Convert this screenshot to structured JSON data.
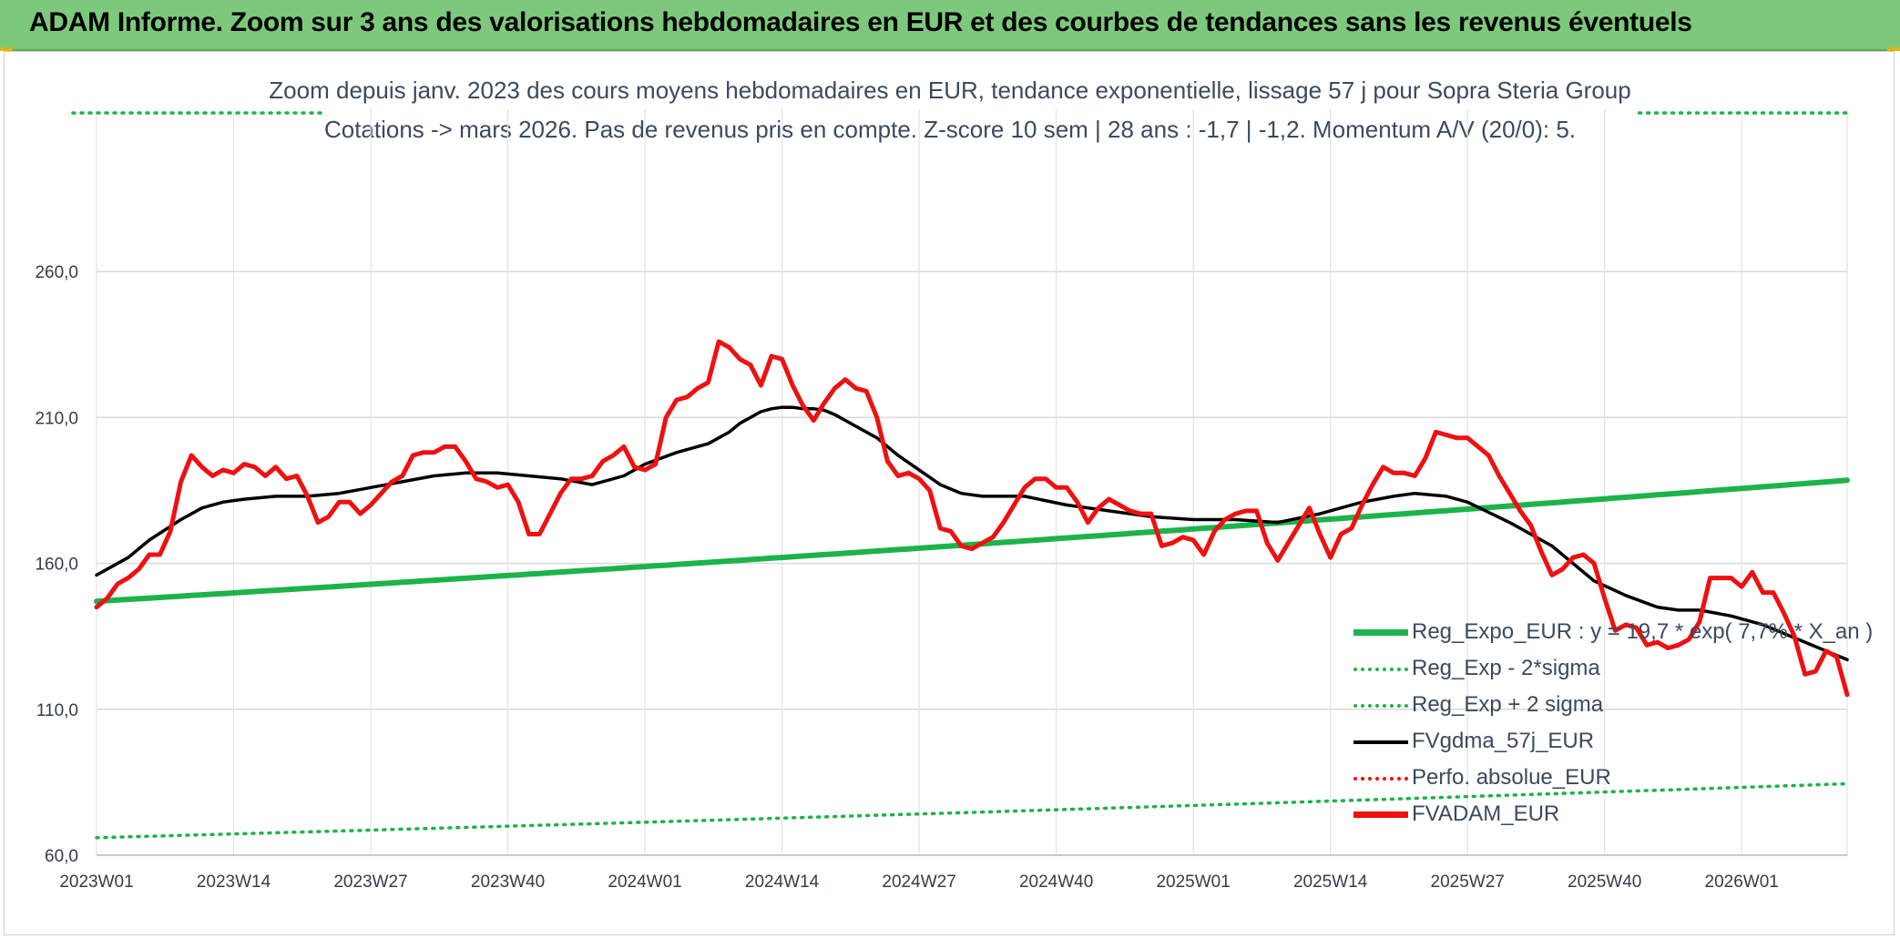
{
  "banner": {
    "title": "ADAM Informe. Zoom sur 3 ans des valorisations hebdomadaires en EUR et des courbes de tendances sans les revenus éventuels"
  },
  "chart_data": {
    "type": "line",
    "title": "Zoom depuis janv. 2023 des cours moyens hebdomadaires en EUR, tendance exponentielle, lissage 57 j pour Sopra Steria Group",
    "subtitle": "Cotations -> mars 2026. Pas de revenus pris en compte. Z-score 10 sem | 28 ans : -1,7 | -1,2. Momentum A/V (20/0): 5.",
    "x_tick_labels": [
      "2023W01",
      "2023W14",
      "2023W27",
      "2023W40",
      "2024W01",
      "2024W14",
      "2024W27",
      "2024W40",
      "2025W01",
      "2025W14",
      "2025W27",
      "2025W40",
      "2026W01"
    ],
    "y_tick_labels": [
      "60,0",
      "110,0",
      "160,0",
      "210,0",
      "260,0"
    ],
    "y_ticks": [
      60,
      110,
      160,
      210,
      260
    ],
    "ylim": [
      60,
      300
    ],
    "x_range_weeks": [
      0,
      166
    ],
    "grid": true,
    "legend_position": "bottom-right",
    "colors": {
      "reg_expo": "#1db34a",
      "sigma": "#1db34a",
      "fvgdma": "#000000",
      "perfo": "#ff0000",
      "fvadam": "#ee1111"
    },
    "series": [
      {
        "name": "Reg_Expo_EUR : y = 19,7 * exp( 7,7% * X_an )",
        "style": "solid-thick",
        "color": "#1db34a",
        "x": [
          0,
          166
        ],
        "values": [
          147,
          188.5
        ],
        "exponential": true
      },
      {
        "name": "Reg_Exp - 2*sigma",
        "style": "dotted",
        "color": "#1db34a",
        "x": [
          0,
          166
        ],
        "values": [
          66,
          84.5
        ],
        "exponential": true
      },
      {
        "name": "Reg_Exp + 2 sigma",
        "style": "dotted",
        "color": "#1db34a",
        "x": [
          0,
          18,
          148,
          166
        ],
        "values": [
          327,
          327,
          327,
          327
        ],
        "exponential": false
      },
      {
        "name": "FVgdma_57j_EUR",
        "style": "solid",
        "color": "#000000",
        "x": [
          0,
          3,
          5,
          8,
          10,
          12,
          14,
          17,
          20,
          23,
          26,
          29,
          32,
          35,
          38,
          41,
          44,
          47,
          50,
          52,
          55,
          58,
          60,
          61,
          62,
          63,
          64,
          65,
          66,
          67,
          68,
          69,
          70,
          71,
          72,
          74,
          76,
          78,
          80,
          82,
          84,
          88,
          92,
          96,
          100,
          104,
          108,
          112,
          116,
          118,
          120,
          123,
          125,
          128,
          130,
          134,
          138,
          140,
          142,
          145,
          148,
          150,
          152,
          155,
          158,
          160,
          162,
          164,
          166
        ],
        "values": [
          156,
          162,
          168,
          175,
          179,
          181,
          182,
          183,
          183,
          184,
          186,
          188,
          190,
          191,
          191,
          190,
          189,
          187,
          190,
          194,
          198,
          201,
          205,
          208,
          210,
          212,
          213,
          213.5,
          213.5,
          213,
          213,
          212.5,
          211,
          209,
          207,
          203,
          197,
          192,
          187,
          184,
          183,
          183,
          180,
          178,
          176,
          175,
          175,
          174,
          177,
          179,
          181,
          183,
          184,
          183,
          181,
          174,
          166,
          160,
          154,
          149,
          145,
          144,
          144,
          142,
          139,
          136,
          133,
          130,
          127
        ]
      },
      {
        "name": "Perfo. absolue_EUR",
        "style": "dotted",
        "color": "#ff0000",
        "x": [],
        "values": []
      },
      {
        "name": "FVADAM_EUR",
        "style": "solid-thick",
        "color": "#ee1111",
        "x": [
          0,
          1,
          2,
          3,
          4,
          5,
          6,
          7,
          8,
          9,
          10,
          11,
          12,
          13,
          14,
          15,
          16,
          17,
          18,
          19,
          20,
          21,
          22,
          23,
          24,
          25,
          26,
          27,
          28,
          29,
          30,
          31,
          32,
          33,
          34,
          35,
          36,
          37,
          38,
          39,
          40,
          41,
          42,
          43,
          44,
          45,
          46,
          47,
          48,
          49,
          50,
          51,
          52,
          53,
          54,
          55,
          56,
          57,
          58,
          59,
          60,
          61,
          62,
          63,
          64,
          65,
          66,
          67,
          68,
          69,
          70,
          71,
          72,
          73,
          74,
          75,
          76,
          77,
          78,
          79,
          80,
          81,
          82,
          83,
          84,
          85,
          86,
          87,
          88,
          89,
          90,
          91,
          92,
          93,
          94,
          95,
          96,
          97,
          98,
          99,
          100,
          101,
          102,
          103,
          104,
          105,
          106,
          107,
          108,
          109,
          110,
          111,
          112,
          113,
          114,
          115,
          116,
          117,
          118,
          119,
          120,
          121,
          122,
          123,
          124,
          125,
          126,
          127,
          128,
          129,
          130,
          131,
          132,
          133,
          134,
          135,
          136,
          137,
          138,
          139,
          140,
          141,
          142,
          143,
          144,
          145,
          146,
          147,
          148,
          149,
          150,
          151,
          152,
          153,
          154,
          155,
          156,
          157,
          158,
          159,
          160,
          161,
          162,
          163,
          164,
          165,
          166
        ],
        "values": [
          145,
          148,
          153,
          155,
          158,
          163,
          163,
          171,
          188,
          197,
          193,
          190,
          192,
          191,
          194,
          193,
          190,
          193,
          189,
          190,
          183,
          174,
          176,
          181,
          181,
          177,
          180,
          184,
          188,
          190,
          197,
          198,
          198,
          200,
          200,
          195,
          189,
          188,
          186,
          187,
          181,
          170,
          170,
          177,
          184,
          189,
          189,
          190,
          195,
          197,
          200,
          193,
          192,
          194,
          210,
          216,
          217,
          220,
          222,
          236,
          234,
          230,
          228,
          221,
          231,
          230,
          221,
          214,
          209,
          215,
          220,
          223,
          220,
          219,
          210,
          195,
          190,
          191,
          189,
          185,
          172,
          171,
          166,
          165,
          167,
          169,
          174,
          180,
          186,
          189,
          189,
          186,
          186,
          181,
          174,
          179,
          182,
          180,
          178,
          177,
          177,
          166,
          167,
          169,
          168,
          163,
          171,
          175,
          177,
          178,
          178,
          167,
          161,
          167,
          173,
          179,
          170,
          162,
          170,
          172,
          180,
          187,
          193,
          191,
          191,
          190,
          196,
          205,
          204,
          203,
          203,
          200,
          197,
          190,
          184,
          178,
          173,
          164,
          156,
          158,
          162,
          163,
          160,
          148,
          137,
          139,
          138,
          132,
          133,
          131,
          132,
          134,
          140,
          155,
          155,
          155,
          152,
          157,
          150,
          150,
          143,
          135,
          122,
          123,
          130,
          128,
          115
        ]
      }
    ]
  }
}
